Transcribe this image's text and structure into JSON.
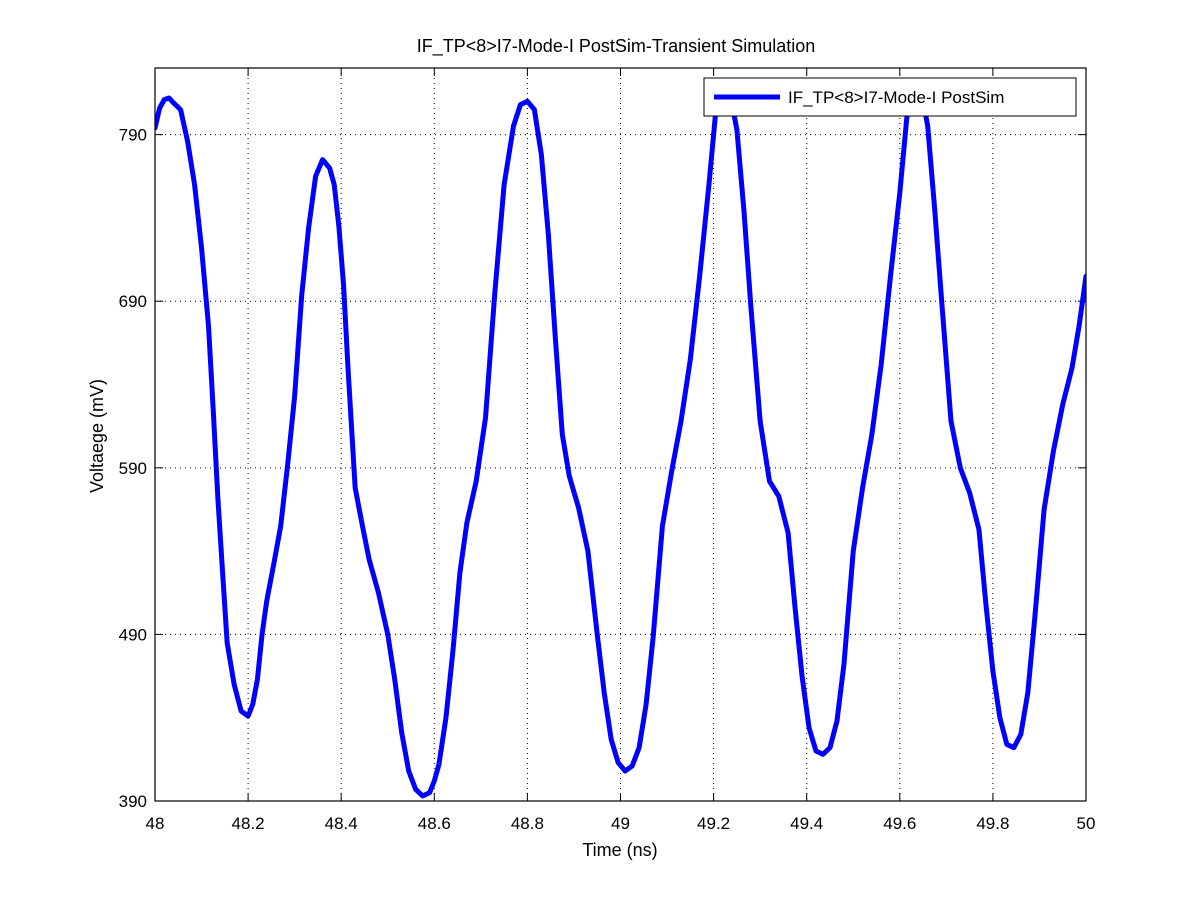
{
  "chart_data": {
    "type": "line",
    "title": "IF_TP<8>I7-Mode-I PostSim-Transient Simulation",
    "xlabel": "Time (ns)",
    "ylabel": "Voltaege (mV)",
    "xlim": [
      48,
      50
    ],
    "ylim": [
      390,
      830
    ],
    "xticks": [
      48,
      48.2,
      48.4,
      48.6,
      48.8,
      49,
      49.2,
      49.4,
      49.6,
      49.8,
      50
    ],
    "xtick_labels": [
      "48",
      "48.2",
      "48.4",
      "48.6",
      "48.8",
      "49",
      "49.2",
      "49.4",
      "49.6",
      "49.8",
      "50"
    ],
    "yticks": [
      390,
      490,
      590,
      690,
      790
    ],
    "ytick_labels": [
      "390",
      "490",
      "590",
      "690",
      "790"
    ],
    "grid": true,
    "legend": {
      "position": "top-right",
      "entries": [
        "IF_TP<8>I7-Mode-I PostSim"
      ]
    },
    "colors": {
      "series": "#0000ff"
    },
    "series": [
      {
        "name": "IF_TP<8>I7-Mode-I PostSim",
        "x": [
          48.0,
          48.01,
          48.02,
          48.03,
          48.04,
          48.055,
          48.07,
          48.085,
          48.1,
          48.115,
          48.125,
          48.135,
          48.145,
          48.155,
          48.17,
          48.185,
          48.2,
          48.21,
          48.22,
          48.23,
          48.24,
          48.255,
          48.27,
          48.285,
          48.3,
          48.315,
          48.33,
          48.345,
          48.36,
          48.375,
          48.385,
          48.395,
          48.405,
          48.415,
          48.43,
          48.445,
          48.46,
          48.48,
          48.5,
          48.515,
          48.53,
          48.545,
          48.56,
          48.575,
          48.59,
          48.6,
          48.61,
          48.625,
          48.64,
          48.655,
          48.67,
          48.69,
          48.71,
          48.73,
          48.75,
          48.77,
          48.785,
          48.8,
          48.815,
          48.83,
          48.845,
          48.86,
          48.875,
          48.89,
          48.91,
          48.93,
          48.95,
          48.965,
          48.98,
          48.995,
          49.01,
          49.025,
          49.04,
          49.055,
          49.07,
          49.09,
          49.11,
          49.13,
          49.15,
          49.17,
          49.19,
          49.205,
          49.22,
          49.235,
          49.25,
          49.265,
          49.28,
          49.3,
          49.32,
          49.34,
          49.36,
          49.375,
          49.39,
          49.405,
          49.42,
          49.435,
          49.45,
          49.465,
          49.48,
          49.5,
          49.52,
          49.54,
          49.56,
          49.58,
          49.6,
          49.615,
          49.63,
          49.645,
          49.66,
          49.675,
          49.69,
          49.71,
          49.73,
          49.75,
          49.77,
          49.785,
          49.8,
          49.815,
          49.83,
          49.845,
          49.86,
          49.875,
          49.89,
          49.91,
          49.93,
          49.95,
          49.97,
          49.985,
          50.0
        ],
        "y": [
          794,
          806,
          811,
          812,
          809,
          805,
          786,
          760,
          722,
          675,
          625,
          572,
          528,
          485,
          460,
          444,
          441,
          448,
          463,
          490,
          510,
          532,
          555,
          592,
          633,
          693,
          734,
          765,
          775,
          770,
          760,
          735,
          700,
          648,
          578,
          556,
          535,
          515,
          490,
          463,
          431,
          408,
          397,
          393,
          395,
          402,
          412,
          440,
          480,
          527,
          557,
          582,
          620,
          695,
          760,
          795,
          808,
          810,
          805,
          778,
          730,
          668,
          610,
          585,
          566,
          540,
          490,
          455,
          427,
          413,
          408,
          411,
          422,
          448,
          488,
          555,
          588,
          618,
          655,
          705,
          760,
          805,
          822,
          815,
          793,
          745,
          687,
          618,
          582,
          573,
          551,
          506,
          465,
          434,
          420,
          418,
          422,
          438,
          472,
          540,
          578,
          610,
          652,
          705,
          755,
          800,
          820,
          818,
          795,
          745,
          690,
          618,
          590,
          575,
          553,
          508,
          468,
          440,
          424,
          422,
          430,
          455,
          500,
          565,
          600,
          628,
          650,
          675,
          705
        ]
      }
    ]
  }
}
